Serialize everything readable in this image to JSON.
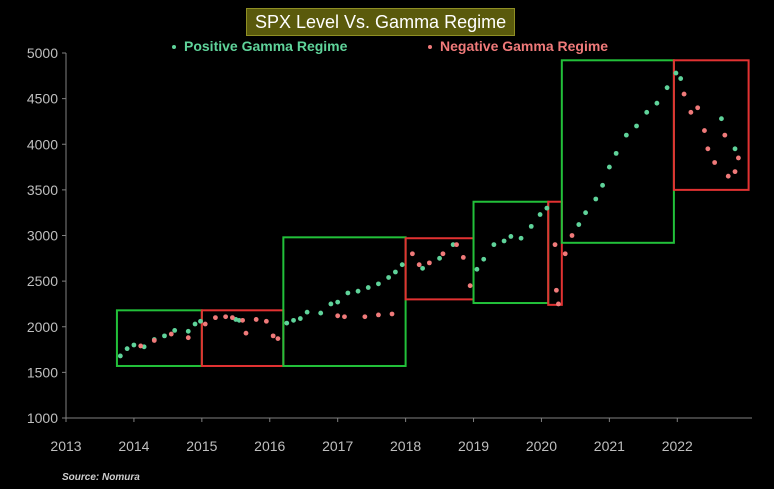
{
  "chart_data": {
    "type": "scatter",
    "title": "SPX Level Vs. Gamma Regime",
    "xlabel": "",
    "ylabel": "",
    "x_ticks": [
      "2013",
      "2014",
      "2015",
      "2016",
      "2017",
      "2018",
      "2019",
      "2020",
      "2021",
      "2022"
    ],
    "y_ticks": [
      "1000",
      "1500",
      "2000",
      "2500",
      "3000",
      "3500",
      "4000",
      "4500",
      "5000"
    ],
    "xlim": [
      2013,
      2023.1
    ],
    "ylim": [
      1000,
      5000
    ],
    "grid": false,
    "legend_position": "top-center",
    "source": "Source: Nomura",
    "series": [
      {
        "name": "Positive Gamma Regime",
        "color": "#5fd39a",
        "points": [
          [
            2013.8,
            1680
          ],
          [
            2013.9,
            1760
          ],
          [
            2014.0,
            1800
          ],
          [
            2014.15,
            1780
          ],
          [
            2014.3,
            1860
          ],
          [
            2014.45,
            1900
          ],
          [
            2014.6,
            1960
          ],
          [
            2014.8,
            1950
          ],
          [
            2014.9,
            2030
          ],
          [
            2014.98,
            2060
          ],
          [
            2015.5,
            2080
          ],
          [
            2015.55,
            2070
          ],
          [
            2016.25,
            2040
          ],
          [
            2016.35,
            2070
          ],
          [
            2016.45,
            2090
          ],
          [
            2016.55,
            2160
          ],
          [
            2016.75,
            2150
          ],
          [
            2016.9,
            2250
          ],
          [
            2017.0,
            2270
          ],
          [
            2017.15,
            2370
          ],
          [
            2017.3,
            2390
          ],
          [
            2017.45,
            2430
          ],
          [
            2017.6,
            2470
          ],
          [
            2017.75,
            2540
          ],
          [
            2017.85,
            2600
          ],
          [
            2017.95,
            2680
          ],
          [
            2018.25,
            2640
          ],
          [
            2018.5,
            2750
          ],
          [
            2018.7,
            2900
          ],
          [
            2019.05,
            2630
          ],
          [
            2019.15,
            2740
          ],
          [
            2019.3,
            2900
          ],
          [
            2019.45,
            2940
          ],
          [
            2019.55,
            2990
          ],
          [
            2019.7,
            2970
          ],
          [
            2019.85,
            3100
          ],
          [
            2019.98,
            3230
          ],
          [
            2020.08,
            3300
          ],
          [
            2020.55,
            3120
          ],
          [
            2020.65,
            3250
          ],
          [
            2020.8,
            3400
          ],
          [
            2020.9,
            3550
          ],
          [
            2021.0,
            3750
          ],
          [
            2021.1,
            3900
          ],
          [
            2021.25,
            4100
          ],
          [
            2021.4,
            4200
          ],
          [
            2021.55,
            4350
          ],
          [
            2021.7,
            4450
          ],
          [
            2021.85,
            4620
          ],
          [
            2021.98,
            4780
          ],
          [
            2022.05,
            4720
          ],
          [
            2022.65,
            4280
          ],
          [
            2022.85,
            3950
          ]
        ]
      },
      {
        "name": "Negative Gamma Regime",
        "color": "#f07a7a",
        "points": [
          [
            2014.1,
            1790
          ],
          [
            2014.3,
            1850
          ],
          [
            2014.55,
            1920
          ],
          [
            2014.8,
            1880
          ],
          [
            2015.05,
            2030
          ],
          [
            2015.2,
            2100
          ],
          [
            2015.35,
            2110
          ],
          [
            2015.45,
            2100
          ],
          [
            2015.6,
            2070
          ],
          [
            2015.65,
            1930
          ],
          [
            2015.8,
            2080
          ],
          [
            2015.95,
            2060
          ],
          [
            2016.05,
            1900
          ],
          [
            2016.12,
            1870
          ],
          [
            2017.0,
            2120
          ],
          [
            2017.1,
            2110
          ],
          [
            2017.4,
            2110
          ],
          [
            2017.6,
            2130
          ],
          [
            2017.8,
            2140
          ],
          [
            2018.1,
            2800
          ],
          [
            2018.2,
            2680
          ],
          [
            2018.35,
            2700
          ],
          [
            2018.55,
            2800
          ],
          [
            2018.75,
            2900
          ],
          [
            2018.85,
            2760
          ],
          [
            2018.95,
            2450
          ],
          [
            2020.2,
            2900
          ],
          [
            2020.22,
            2400
          ],
          [
            2020.25,
            2250
          ],
          [
            2020.35,
            2800
          ],
          [
            2020.45,
            3000
          ],
          [
            2022.1,
            4550
          ],
          [
            2022.2,
            4350
          ],
          [
            2022.3,
            4400
          ],
          [
            2022.4,
            4150
          ],
          [
            2022.45,
            3950
          ],
          [
            2022.55,
            3800
          ],
          [
            2022.7,
            4100
          ],
          [
            2022.75,
            3650
          ],
          [
            2022.85,
            3700
          ],
          [
            2022.9,
            3850
          ]
        ]
      }
    ],
    "regime_boxes": [
      {
        "regime": "positive",
        "x0": 2013.75,
        "x1": 2015.0,
        "y0": 1570,
        "y1": 2180
      },
      {
        "regime": "negative",
        "x0": 2015.0,
        "x1": 2016.2,
        "y0": 1570,
        "y1": 2180
      },
      {
        "regime": "positive",
        "x0": 2016.2,
        "x1": 2018.0,
        "y0": 1570,
        "y1": 2980
      },
      {
        "regime": "negative",
        "x0": 2018.0,
        "x1": 2019.0,
        "y0": 2300,
        "y1": 2970
      },
      {
        "regime": "positive",
        "x0": 2019.0,
        "x1": 2020.1,
        "y0": 2260,
        "y1": 3370
      },
      {
        "regime": "negative",
        "x0": 2020.1,
        "x1": 2020.3,
        "y0": 2240,
        "y1": 3370
      },
      {
        "regime": "positive",
        "x0": 2020.3,
        "x1": 2021.95,
        "y0": 2920,
        "y1": 4920
      },
      {
        "regime": "negative",
        "x0": 2021.95,
        "x1": 2023.05,
        "y0": 3500,
        "y1": 4920
      }
    ],
    "colors": {
      "positive": "#5fd39a",
      "negative": "#f07a7a",
      "box_positive": "#22c03a",
      "box_negative": "#e23232",
      "title_bg": "#5a5a0c",
      "axis": "#808080",
      "tick_text": "#bfbfbf"
    }
  }
}
